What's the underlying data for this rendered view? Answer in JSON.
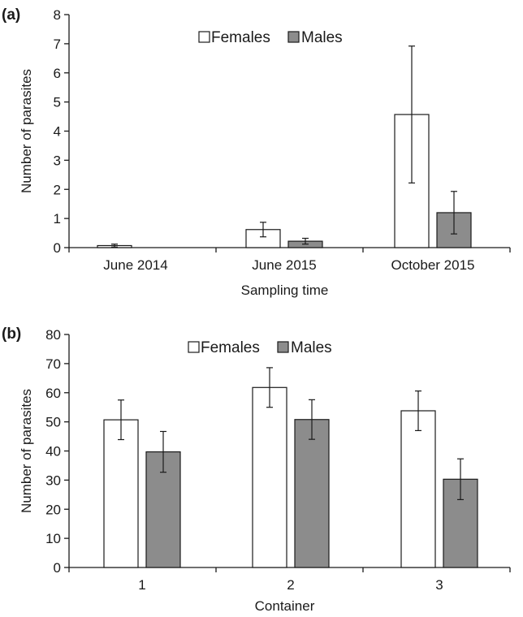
{
  "colors": {
    "females": "#ffffff",
    "males": "#8c8c8c",
    "axis": "#1a1a1a"
  },
  "chart_data": [
    {
      "type": "bar",
      "panel_label": "(a)",
      "title": "",
      "xlabel": "Sampling time",
      "ylabel": "Number of parasites",
      "categories": [
        "June 2014",
        "June 2015",
        "October 2015"
      ],
      "ylim": [
        0,
        8
      ],
      "yticks": [
        "0",
        "1",
        "2",
        "3",
        "4",
        "5",
        "6",
        "7",
        "8"
      ],
      "legend_position": "top-center",
      "grid": false,
      "series": [
        {
          "name": "Females",
          "values": [
            0.07,
            0.62,
            4.57
          ],
          "errors": [
            0.05,
            0.25,
            2.35
          ]
        },
        {
          "name": "Males",
          "values": [
            0,
            0.22,
            1.2
          ],
          "errors": [
            0,
            0.1,
            0.73
          ]
        }
      ]
    },
    {
      "type": "bar",
      "panel_label": "(b)",
      "title": "",
      "xlabel": "Container",
      "ylabel": "Number of parasites",
      "categories": [
        "1",
        "2",
        "3"
      ],
      "ylim": [
        0,
        80
      ],
      "yticks": [
        "0",
        "10",
        "20",
        "30",
        "40",
        "50",
        "60",
        "70",
        "80"
      ],
      "legend_position": "top-center",
      "grid": false,
      "series": [
        {
          "name": "Females",
          "values": [
            50.7,
            61.8,
            53.8
          ],
          "errors": [
            6.8,
            6.8,
            6.8
          ]
        },
        {
          "name": "Males",
          "values": [
            39.7,
            50.8,
            30.3
          ],
          "errors": [
            7.0,
            6.8,
            7.0
          ]
        }
      ]
    }
  ]
}
